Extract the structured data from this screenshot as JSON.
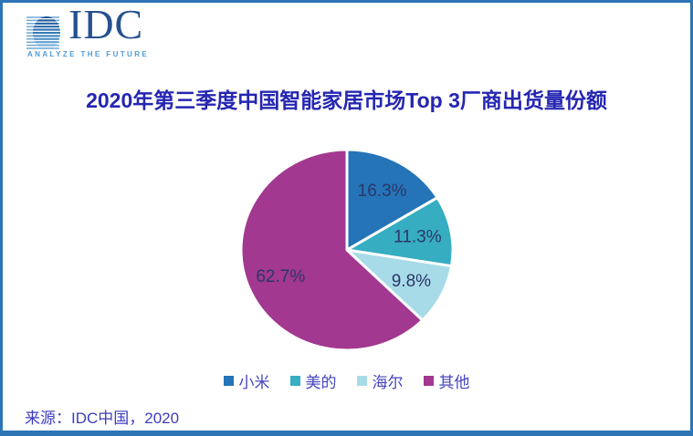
{
  "theme": {
    "border": "#2E75B6",
    "title": "#2526B2",
    "label": "#2A3768",
    "legendText": "#4645BE",
    "sourceText": "#3D3DC0",
    "logoNavy": "#26518F",
    "logoTagline": "#4E9BD4"
  },
  "logo": {
    "brand": "IDC",
    "tagline": "ANALYZE THE FUTURE"
  },
  "source": "来源：IDC中国，2020",
  "chart_data": {
    "type": "pie",
    "title": "2020年第三季度中国智能家居市场Top 3厂商出货量份额",
    "series": [
      {
        "name": "小米",
        "value": 16.3,
        "color": "#2574B8"
      },
      {
        "name": "美的",
        "value": 11.3,
        "color": "#36ADC1"
      },
      {
        "name": "海尔",
        "value": 9.8,
        "color": "#A8DBE8"
      },
      {
        "name": "其他",
        "value": 62.7,
        "color": "#A23890"
      }
    ],
    "start_angle_deg": 0,
    "direction": "clockwise",
    "label_suffix": "%",
    "labels_inside": true,
    "legend_position": "bottom"
  }
}
